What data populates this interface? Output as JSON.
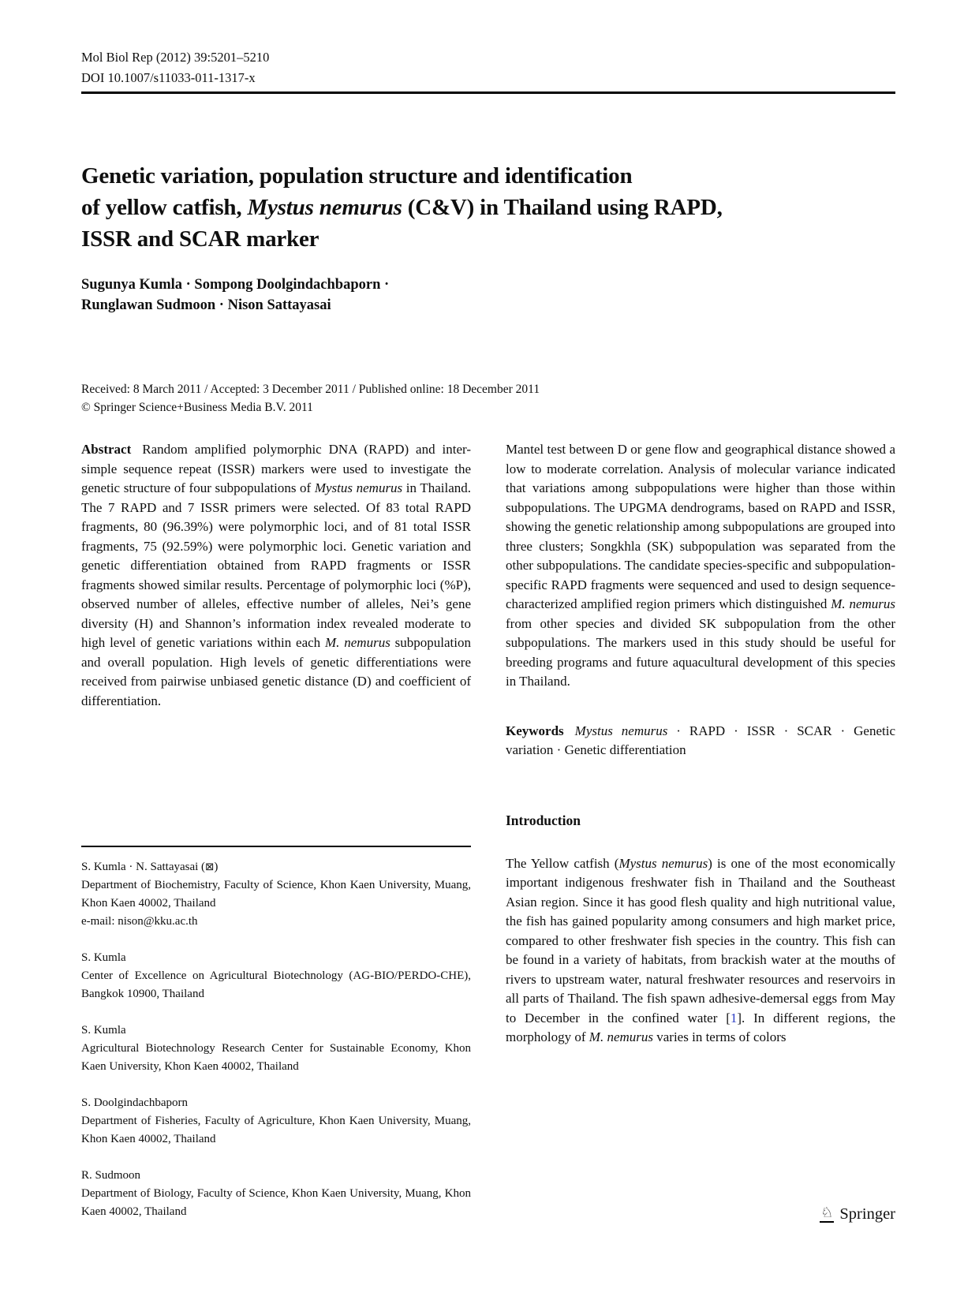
{
  "header": {
    "journal_ref": "Mol Biol Rep (2012) 39:5201–5210",
    "doi": "DOI 10.1007/s11033-011-1317-x"
  },
  "title": {
    "lines": [
      [
        {
          "t": "Genetic variation, population structure and identification"
        }
      ],
      [
        {
          "t": "of yellow catfish, "
        },
        {
          "t": "Mystus nemurus",
          "s": "i"
        },
        {
          "t": " (C&V) in Thailand using RAPD,"
        }
      ],
      [
        {
          "t": "ISSR and SCAR marker"
        }
      ]
    ]
  },
  "authors": {
    "line1": "Sugunya Kumla · Sompong Doolgindachbaporn ·",
    "line2": "Runglawan Sudmoon · Nison Sattayasai"
  },
  "dates": {
    "received_line": "Received: 8 March 2011 / Accepted: 3 December 2011 / Published online: 18 December 2011",
    "copyright_line": "© Springer Science+Business Media B.V. 2011"
  },
  "abstract": {
    "label": "Abstract",
    "col1_segments": [
      {
        "t": "Random amplified polymorphic DNA (RAPD) and inter-simple sequence repeat (ISSR) markers were used to investigate the genetic structure of four subpopulations of "
      },
      {
        "t": "Mystus nemurus",
        "s": "i"
      },
      {
        "t": " in Thailand. The 7 RAPD and 7 ISSR primers were selected. Of 83 total RAPD fragments, 80 (96.39%) were polymorphic loci, and of 81 total ISSR fragments, 75 (92.59%) were polymorphic loci. Genetic variation and genetic differentiation obtained from RAPD fragments or ISSR fragments showed similar results. Percentage of polymorphic loci (%P), observed number of alleles, effective number of alleles, Nei’s gene diversity (H) and Shannon’s information index revealed moderate to high level of genetic variations within each "
      },
      {
        "t": "M. nemurus",
        "s": "i"
      },
      {
        "t": " subpopulation and overall population. High levels of genetic differentiations were received from pairwise unbiased genetic distance (D) and coefficient of differentiation."
      }
    ],
    "col2_segments": [
      {
        "t": "Mantel test between D or gene flow and geographical distance showed a low to moderate correlation. Analysis of molecular variance indicated that variations among subpopulations were higher than those within subpopulations. The UPGMA dendrograms, based on RAPD and ISSR, showing the genetic relationship among subpopulations are grouped into three clusters; Songkhla (SK) subpopulation was separated from the other subpopulations. The candidate species-specific and subpopulation-specific RAPD fragments were sequenced and used to design sequence-characterized amplified region primers which distinguished "
      },
      {
        "t": "M. nemurus",
        "s": "i"
      },
      {
        "t": " from other species and divided SK subpopulation from the other subpopulations. The markers used in this study should be useful for breeding programs and future aquacultural development of this species in Thailand."
      }
    ]
  },
  "keywords": {
    "label": "Keywords",
    "segments": [
      {
        "t": "Mystus nemurus",
        "s": "i"
      },
      {
        "t": " · RAPD · ISSR · SCAR · Genetic variation · Genetic differentiation"
      }
    ]
  },
  "introduction": {
    "heading": "Introduction",
    "para_segments": [
      {
        "t": "The Yellow catfish ("
      },
      {
        "t": "Mystus nemurus",
        "s": "i"
      },
      {
        "t": ") is one of the most economically important indigenous freshwater fish in Thailand and the Southeast Asian region. Since it has good flesh quality and high nutritional value, the fish has gained popularity among consumers and high market price, compared to other freshwater fish species in the country. This fish can be found in a variety of habitats, from brackish water at the mouths of rivers to upstream water, natural freshwater resources and reservoirs in all parts of Thailand. The fish spawn adhesive-demersal eggs from May to December in the confined water ["
      },
      {
        "t": "1",
        "s": "link"
      },
      {
        "t": "]. In different regions, the morphology of "
      },
      {
        "t": "M. nemurus",
        "s": "i"
      },
      {
        "t": " varies in terms of colors"
      }
    ]
  },
  "footnotes": {
    "groups": [
      {
        "names": [
          {
            "t": "S. Kumla · N. Sattayasai ("
          },
          {
            "t": "⊠",
            "s": "env"
          },
          {
            "t": ")"
          }
        ],
        "affiliation": "Department of Biochemistry, Faculty of Science, Khon Kaen University, Muang, Khon Kaen 40002, Thailand",
        "email": "e-mail: nison@kku.ac.th"
      },
      {
        "names": [
          {
            "t": "S. Kumla"
          }
        ],
        "affiliation": "Center of Excellence on Agricultural Biotechnology (AG-BIO/PERDO-CHE), Bangkok 10900, Thailand"
      },
      {
        "names": [
          {
            "t": "S. Kumla"
          }
        ],
        "affiliation": "Agricultural Biotechnology Research Center for Sustainable Economy, Khon Kaen University, Khon Kaen 40002, Thailand"
      },
      {
        "names": [
          {
            "t": "S. Doolgindachbaporn"
          }
        ],
        "affiliation": "Department of Fisheries, Faculty of Agriculture, Khon Kaen University, Muang, Khon Kaen 40002, Thailand"
      },
      {
        "names": [
          {
            "t": "R. Sudmoon"
          }
        ],
        "affiliation": "Department of Biology, Faculty of Science, Khon Kaen University, Muang, Khon Kaen 40002, Thailand"
      }
    ]
  },
  "footer": {
    "publisher": "Springer",
    "knight_glyph": "♘"
  },
  "colors": {
    "link_blue": "#2b3cc4",
    "text": "#0f0f0f",
    "rule": "#000000"
  }
}
